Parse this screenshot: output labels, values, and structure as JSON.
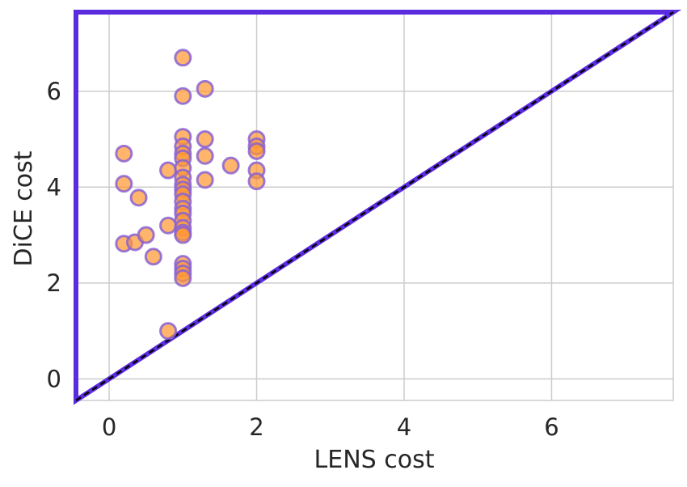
{
  "chart_data": {
    "type": "scatter",
    "xlabel": "LENS cost",
    "ylabel": "DiCE cost",
    "xlim": [
      -0.45,
      7.65
    ],
    "ylim": [
      -0.45,
      7.65
    ],
    "x_ticks": [
      0,
      2,
      4,
      6
    ],
    "y_ticks": [
      0,
      2,
      4,
      6
    ],
    "x_tick_labels": [
      "0",
      "2",
      "4",
      "6"
    ],
    "y_tick_labels": [
      "0",
      "2",
      "4",
      "6"
    ],
    "grid": true,
    "reference_line": {
      "style": "dashed",
      "color": "#000000",
      "from": [
        -0.45,
        -0.45
      ],
      "to": [
        7.65,
        7.65
      ]
    },
    "feasible_region": {
      "color": "#5b2be0",
      "vertices": [
        [
          -0.45,
          -0.45
        ],
        [
          -0.45,
          7.65
        ],
        [
          7.65,
          7.65
        ]
      ]
    },
    "marker": {
      "fill": "#ff9933",
      "edge": "#8a63d2"
    },
    "points": [
      [
        1.0,
        6.7
      ],
      [
        1.0,
        5.9
      ],
      [
        1.3,
        6.05
      ],
      [
        0.2,
        4.7
      ],
      [
        0.2,
        4.07
      ],
      [
        0.4,
        3.78
      ],
      [
        0.2,
        2.82
      ],
      [
        0.35,
        2.85
      ],
      [
        0.5,
        3.0
      ],
      [
        0.6,
        2.55
      ],
      [
        0.8,
        4.35
      ],
      [
        0.8,
        3.2
      ],
      [
        0.8,
        1.0
      ],
      [
        1.0,
        5.05
      ],
      [
        1.0,
        4.85
      ],
      [
        1.0,
        4.7
      ],
      [
        1.0,
        4.6
      ],
      [
        1.0,
        4.4
      ],
      [
        1.0,
        4.2
      ],
      [
        1.0,
        4.05
      ],
      [
        1.0,
        3.95
      ],
      [
        1.0,
        3.85
      ],
      [
        1.0,
        3.7
      ],
      [
        1.0,
        3.55
      ],
      [
        1.0,
        3.45
      ],
      [
        1.0,
        3.3
      ],
      [
        1.0,
        3.15
      ],
      [
        1.0,
        3.05
      ],
      [
        1.0,
        3.0
      ],
      [
        1.0,
        2.4
      ],
      [
        1.0,
        2.3
      ],
      [
        1.0,
        2.2
      ],
      [
        1.0,
        2.1
      ],
      [
        1.3,
        5.0
      ],
      [
        1.3,
        4.65
      ],
      [
        1.3,
        4.15
      ],
      [
        1.65,
        4.45
      ],
      [
        2.0,
        5.0
      ],
      [
        2.0,
        4.85
      ],
      [
        2.0,
        4.75
      ],
      [
        2.0,
        4.35
      ],
      [
        2.0,
        4.12
      ]
    ]
  }
}
